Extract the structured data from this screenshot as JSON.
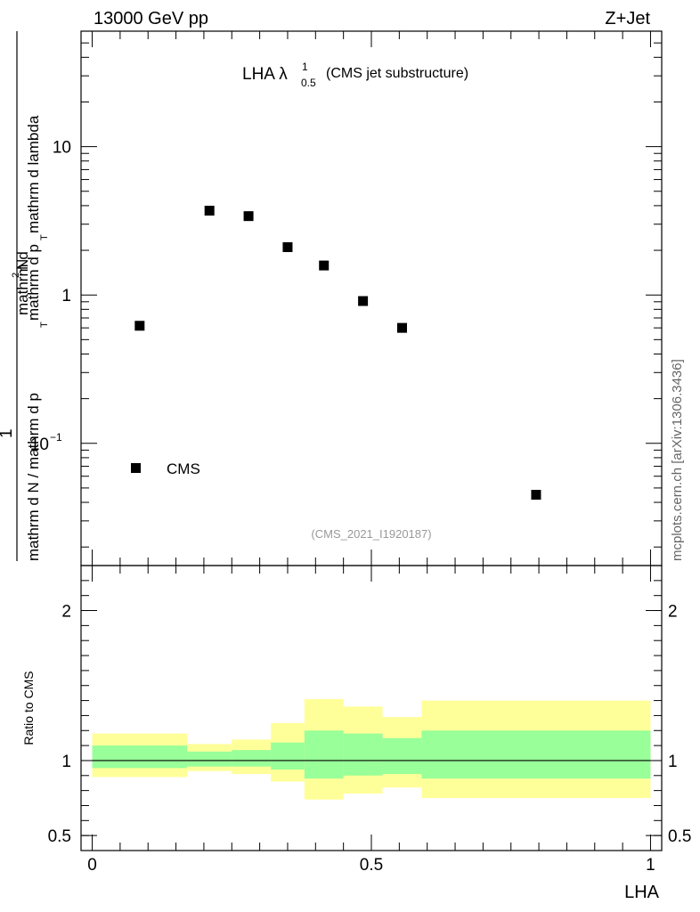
{
  "header": {
    "left": "13000 GeV pp",
    "right": "Z+Jet"
  },
  "side_label": "mcplots.cern.ch [arXiv:1306.3436]",
  "chart_data": [
    {
      "type": "scatter",
      "title": {
        "main": "LHA λ",
        "sup": "1",
        "sub": "0.5",
        "suffix": "(CMS jet substructure)"
      },
      "ylabel": {
        "num": "mathrm d²N",
        "den": "mathrm d N / mathrm d p_T mathrm d p_T mathrm d lambda",
        "prefix": "1",
        "den_line1": "mathrm d N / mathrm d p",
        "den_line1_sub": "T",
        "den_line2": "mathrm d p",
        "den_line2_sub": "T",
        "den_line3": " mathrm d lambda",
        "num_line": "mathrm d",
        "num_sup": "2",
        "num_tail": "N"
      },
      "yscale": "log",
      "ylim": [
        0.015,
        60
      ],
      "xlim": [
        -0.02,
        1.02
      ],
      "yticks": [
        {
          "v": 10,
          "label": "10"
        },
        {
          "v": 1,
          "label": "1"
        },
        {
          "v": 0.1,
          "label": "10",
          "sup": "−1"
        }
      ],
      "series": [
        {
          "name": "CMS",
          "color": "#000000",
          "points": [
            {
              "x": 0.085,
              "y": 0.62
            },
            {
              "x": 0.21,
              "y": 3.7
            },
            {
              "x": 0.28,
              "y": 3.4
            },
            {
              "x": 0.35,
              "y": 2.1
            },
            {
              "x": 0.415,
              "y": 1.58
            },
            {
              "x": 0.485,
              "y": 0.91
            },
            {
              "x": 0.555,
              "y": 0.6
            },
            {
              "x": 0.795,
              "y": 0.045
            }
          ]
        }
      ],
      "legend": {
        "label": "CMS",
        "position": "lower-left"
      },
      "annotation": "(CMS_2021_I1920187)"
    },
    {
      "type": "area",
      "ylabel": "Ratio to CMS",
      "xlabel": "LHA",
      "xlim": [
        -0.02,
        1.02
      ],
      "ylim": [
        0.4,
        2.3
      ],
      "yticks": [
        {
          "v": 0.5,
          "label": "0.5"
        },
        {
          "v": 1,
          "label": "1"
        },
        {
          "v": 2,
          "label": "2"
        }
      ],
      "xticks": [
        {
          "v": 0,
          "label": "0"
        },
        {
          "v": 0.5,
          "label": "0.5"
        },
        {
          "v": 1,
          "label": "1"
        }
      ],
      "reference_line": 1,
      "bands": {
        "outer_color": "#ffff99",
        "inner_color": "#99ff99",
        "bins": [
          {
            "x0": 0.0,
            "x1": 0.17,
            "outer": [
              0.89,
              1.18
            ],
            "inner": [
              0.95,
              1.1
            ]
          },
          {
            "x0": 0.17,
            "x1": 0.25,
            "outer": [
              0.93,
              1.11
            ],
            "inner": [
              0.96,
              1.06
            ]
          },
          {
            "x0": 0.25,
            "x1": 0.32,
            "outer": [
              0.91,
              1.14
            ],
            "inner": [
              0.96,
              1.07
            ]
          },
          {
            "x0": 0.32,
            "x1": 0.38,
            "outer": [
              0.86,
              1.25
            ],
            "inner": [
              0.94,
              1.12
            ]
          },
          {
            "x0": 0.38,
            "x1": 0.45,
            "outer": [
              0.74,
              1.41
            ],
            "inner": [
              0.88,
              1.2
            ]
          },
          {
            "x0": 0.45,
            "x1": 0.52,
            "outer": [
              0.78,
              1.36
            ],
            "inner": [
              0.9,
              1.18
            ]
          },
          {
            "x0": 0.52,
            "x1": 0.59,
            "outer": [
              0.82,
              1.29
            ],
            "inner": [
              0.91,
              1.15
            ]
          },
          {
            "x0": 0.59,
            "x1": 1.0,
            "outer": [
              0.75,
              1.4
            ],
            "inner": [
              0.88,
              1.2
            ]
          }
        ]
      }
    }
  ]
}
